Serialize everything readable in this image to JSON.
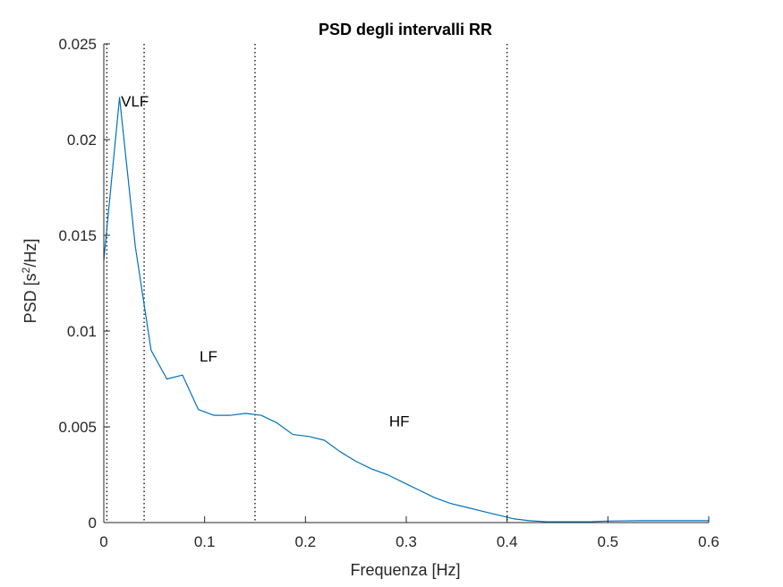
{
  "chart_data": {
    "type": "line",
    "title": "PSD degli intervalli RR",
    "xlabel": "Frequenza [Hz]",
    "ylabel_parts": {
      "prefix": "PSD [s",
      "sup": "2",
      "suffix": "/Hz]"
    },
    "xlim": [
      0,
      0.6
    ],
    "ylim": [
      0,
      0.025
    ],
    "xticks": [
      0,
      0.1,
      0.2,
      0.3,
      0.4,
      0.5,
      0.6
    ],
    "xtick_labels": [
      "0",
      "0.1",
      "0.2",
      "0.3",
      "0.4",
      "0.5",
      "0.6"
    ],
    "yticks": [
      0,
      0.005,
      0.01,
      0.015,
      0.02,
      0.025
    ],
    "ytick_labels": [
      "0",
      "0.005",
      "0.01",
      "0.015",
      "0.02",
      "0.025"
    ],
    "grid": false,
    "line_color": "#0072BD",
    "band_boundaries": [
      0.003,
      0.04,
      0.15,
      0.4
    ],
    "band_labels": [
      {
        "text": "VLF",
        "x": 0.017,
        "y": 0.022
      },
      {
        "text": "LF",
        "x": 0.095,
        "y": 0.0087
      },
      {
        "text": "HF",
        "x": 0.283,
        "y": 0.0053
      }
    ],
    "series": [
      {
        "x": [
          0,
          0.0156,
          0.0313,
          0.0469,
          0.0625,
          0.0781,
          0.0938,
          0.1094,
          0.125,
          0.1406,
          0.1563,
          0.1719,
          0.1875,
          0.2031,
          0.2188,
          0.2344,
          0.25,
          0.2656,
          0.2813,
          0.2969,
          0.3125,
          0.3281,
          0.3438,
          0.3594,
          0.375,
          0.3906,
          0.4063,
          0.4219,
          0.4375,
          0.4531,
          0.4688,
          0.4844,
          0.5,
          0.5156,
          0.5313,
          0.5469,
          0.5625,
          0.5781,
          0.5938,
          0.6
        ],
        "y": [
          0.0137,
          0.0222,
          0.0144,
          0.009,
          0.0075,
          0.0077,
          0.0059,
          0.0056,
          0.0056,
          0.0057,
          0.0056,
          0.0052,
          0.0046,
          0.0045,
          0.0043,
          0.0037,
          0.0032,
          0.0028,
          0.0025,
          0.0021,
          0.0017,
          0.0013,
          0.001,
          0.0008,
          0.0006,
          0.0004,
          0.0002,
          0.0001,
          5e-05,
          4e-05,
          4e-05,
          5e-05,
          8e-05,
          9e-05,
          0.0001,
          0.0001,
          0.0001,
          0.0001,
          0.0001,
          0.0001
        ]
      }
    ]
  }
}
